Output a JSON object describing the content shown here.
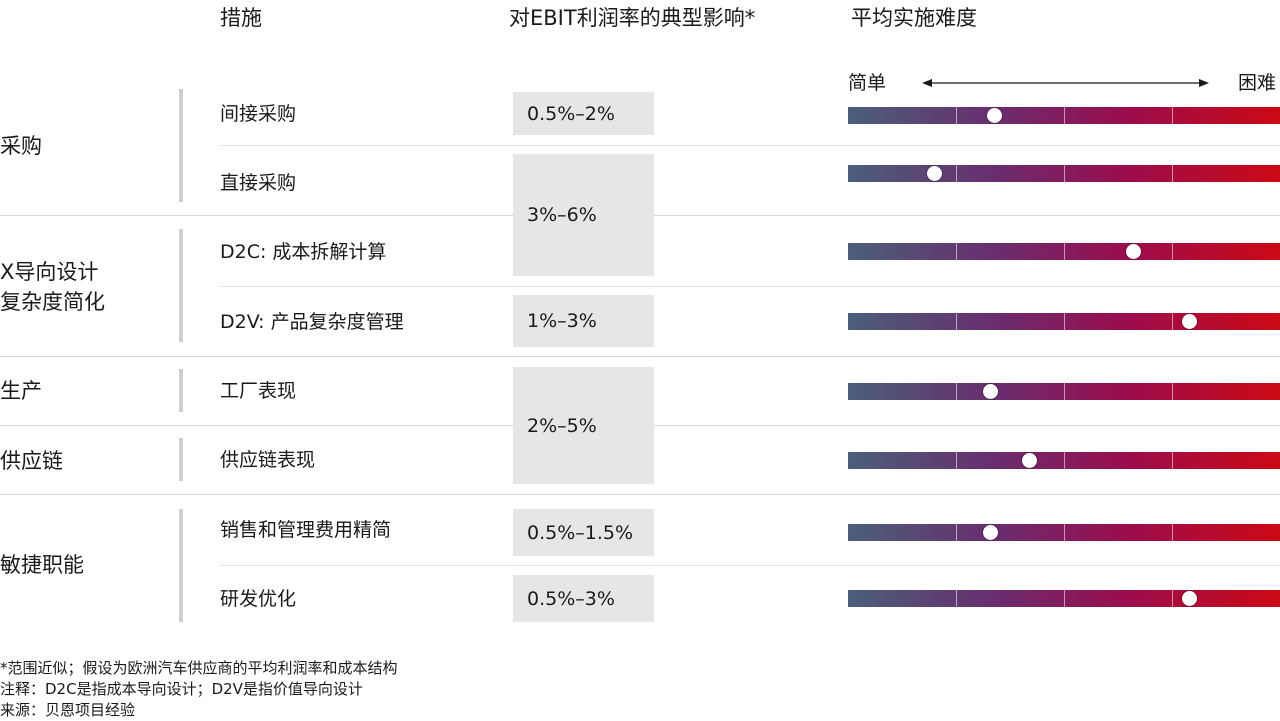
{
  "headers": {
    "measure": "措施",
    "impact": "对EBIT利润率的典型影响*",
    "difficulty": "平均实施难度"
  },
  "scale": {
    "easy": "简单",
    "hard": "困难"
  },
  "groups": [
    {
      "label": "采购"
    },
    {
      "label_line1": "X导向设计",
      "label_line2": "复杂度简化"
    },
    {
      "label": "生产"
    },
    {
      "label": "供应链"
    },
    {
      "label": "敏捷职能"
    }
  ],
  "impacts": [
    "0.5%–2%",
    "3%–6%",
    "1%–3%",
    "2%–5%",
    "0.5%–1.5%",
    "0.5%–3%"
  ],
  "chart_data": {
    "type": "table",
    "difficulty_scale": [
      0,
      1
    ],
    "colors": {
      "easy": "#4a5f7a",
      "mid": "#9c0c4c",
      "hard": "#cc0a15"
    },
    "rows": [
      {
        "group": "采购",
        "measure": "间接采购",
        "impact": "0.5%–2%",
        "difficulty": 0.34
      },
      {
        "group": "采购",
        "measure": "直接采购",
        "impact": "3%–6%",
        "difficulty": 0.2
      },
      {
        "group": "X导向设计 复杂度简化",
        "measure": "D2C: 成本拆解计算",
        "impact": "3%–6%",
        "difficulty": 0.66
      },
      {
        "group": "X导向设计 复杂度简化",
        "measure": "D2V: 产品复杂度管理",
        "impact": "1%–3%",
        "difficulty": 0.79
      },
      {
        "group": "生产",
        "measure": "工厂表现",
        "impact": "2%–5%",
        "difficulty": 0.33
      },
      {
        "group": "供应链",
        "measure": "供应链表现",
        "impact": "2%–5%",
        "difficulty": 0.42
      },
      {
        "group": "敏捷职能",
        "measure": "销售和管理费用精简",
        "impact": "0.5%–1.5%",
        "difficulty": 0.33
      },
      {
        "group": "敏捷职能",
        "measure": "研发优化",
        "impact": "0.5%–3%",
        "difficulty": 0.79
      }
    ]
  },
  "footnotes": [
    "*范围近似；假设为欧洲汽车供应商的平均利润率和成本结构",
    "注释：D2C是指成本导向设计；D2V是指价值导向设计",
    "来源：贝恩项目经验"
  ]
}
